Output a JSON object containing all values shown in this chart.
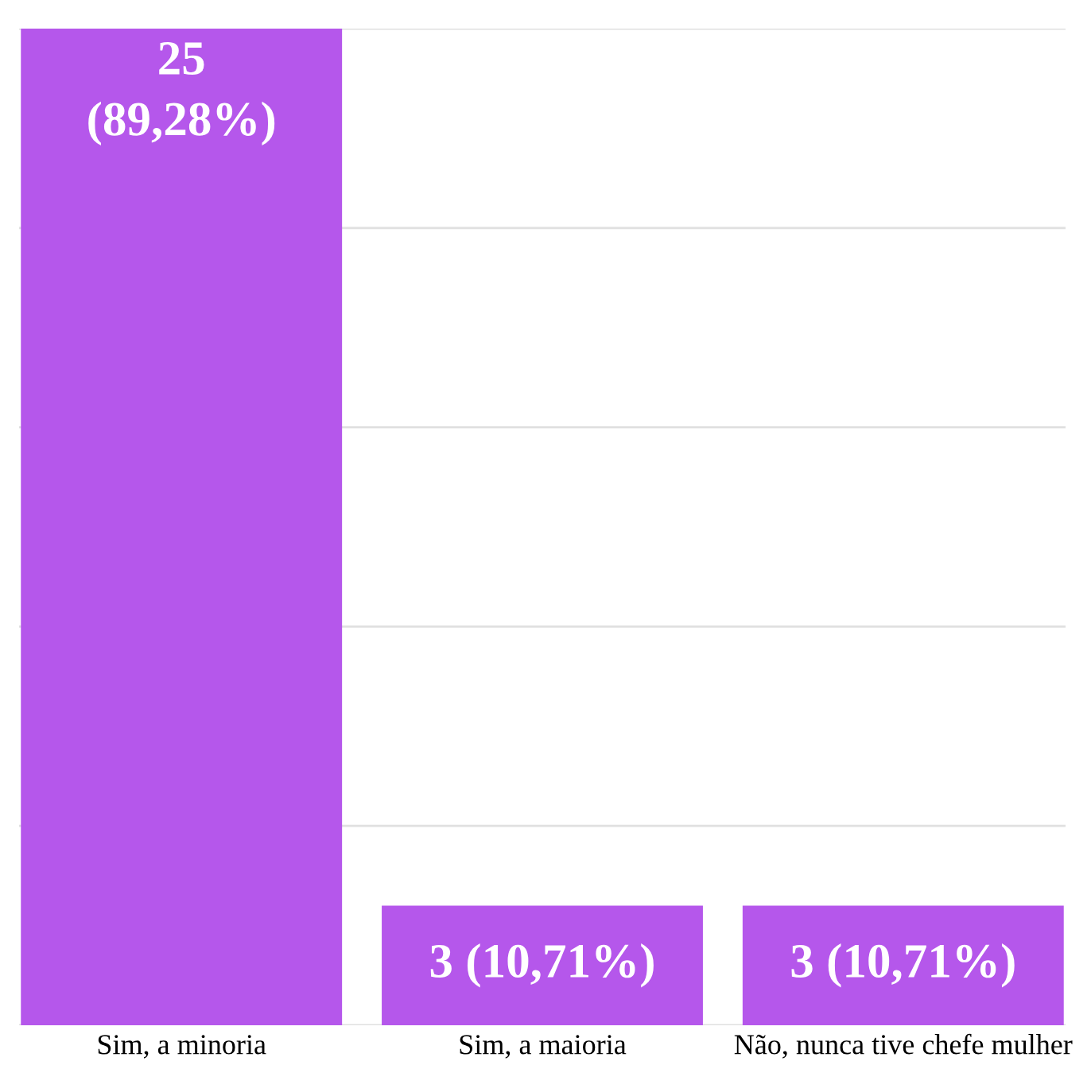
{
  "chart_data": {
    "type": "bar",
    "categories": [
      "Sim, a minoria",
      "Sim, a maioria",
      "Não, nunca tive chefe mulher"
    ],
    "values": [
      25,
      3,
      3
    ],
    "value_labels": [
      "25\n(89,28%)",
      "3 (10,71%)",
      "3 (10,71%)"
    ],
    "color": "#b557eb",
    "ylim": [
      0,
      25
    ],
    "yticks": [
      {
        "value": 0,
        "label": null
      },
      {
        "value": 5,
        "label": null
      },
      {
        "value": 10,
        "label": null
      },
      {
        "value": 15,
        "label": null
      },
      {
        "value": 20,
        "label": null
      },
      {
        "value": 25,
        "label": null
      }
    ],
    "grid": "y",
    "tick_labels": "x"
  }
}
